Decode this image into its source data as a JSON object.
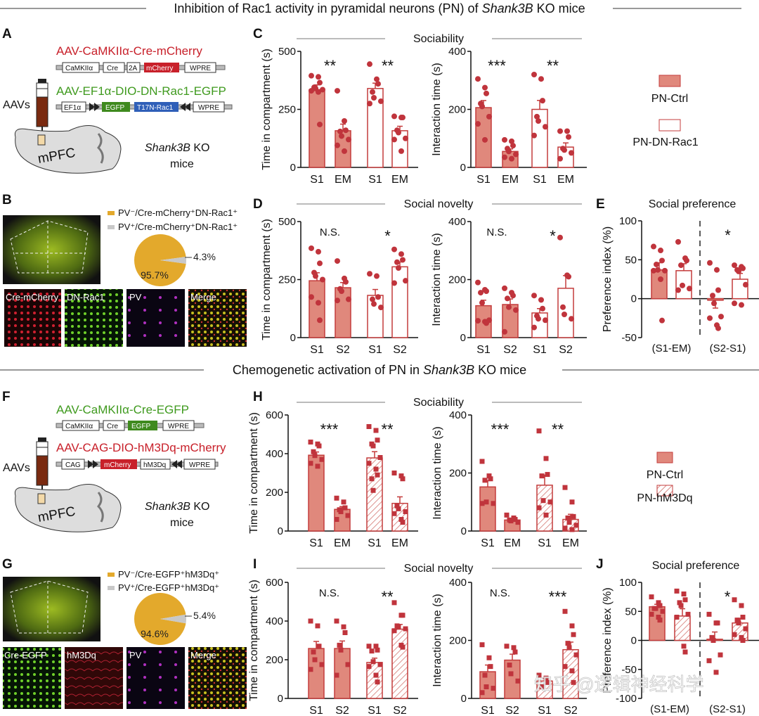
{
  "headers": {
    "top": {
      "pre": "Inhibition of Rac1 activity in pyramidal neurons (PN) of ",
      "italic": "Shank3B",
      "post": " KO mice"
    },
    "middle": {
      "pre": "Chemogenetic activation of PN in ",
      "italic": "Shank3B",
      "post": " KO mice"
    }
  },
  "panels": {
    "A": "A",
    "B": "B",
    "C": "C",
    "D": "D",
    "E": "E",
    "F": "F",
    "G": "G",
    "H": "H",
    "I": "I",
    "J": "J"
  },
  "sections": {
    "C": "Sociability",
    "D": "Social  novelty",
    "E": "Social preference",
    "H": "Sociability",
    "I": "Social  novelty",
    "J": "Social preference"
  },
  "panel_a": {
    "virus1": "AAV-CaMKIIα-Cre-mCherry",
    "virus1_elements": [
      "CaMKIIα",
      "Cre",
      "2A",
      "mCherry",
      "WPRE"
    ],
    "virus2": "AAV-EF1α-DIO-DN-Rac1-EGFP",
    "virus2_elements": [
      "EF1α",
      "EGFP",
      "T17N-Rac1",
      "WPRE"
    ],
    "aavs": "AAVs",
    "region": "mPFC",
    "mouse_italic": "Shank3B",
    "mouse_rest": " KO",
    "mouse_line2": "mice"
  },
  "panel_f": {
    "virus1": "AAV-CaMKIIα-Cre-EGFP",
    "virus1_elements": [
      "CaMKIIα",
      "Cre",
      "EGFP",
      "WPRE"
    ],
    "virus2": "AAV-CAG-DIO-hM3Dq-mCherry",
    "virus2_elements": [
      "CAG",
      "mCherry",
      "hM3Dq",
      "WPRE"
    ],
    "aavs": "AAVs",
    "region": "mPFC",
    "mouse_italic": "Shank3B",
    "mouse_rest": " KO",
    "mouse_line2": "mice"
  },
  "panel_b": {
    "legend": [
      "PV⁻/Cre-mCherry⁺DN-Rac1⁺",
      "PV⁺/Cre-mCherry⁺DN-Rac1⁺"
    ],
    "pie": [
      {
        "label": "95.7%",
        "value": 95.7,
        "color": "#e3a92c"
      },
      {
        "label": "4.3%",
        "value": 4.3,
        "color": "#c8c8c8"
      }
    ],
    "images": [
      "Cre-mCherry",
      "DN-Rac1",
      "PV",
      "Merge"
    ]
  },
  "panel_g": {
    "legend": [
      "PV⁻/Cre-EGFP⁺hM3Dq⁺",
      "PV⁺/Cre-EGFP⁺hM3Dq⁺"
    ],
    "pie": [
      {
        "label": "94.6%",
        "value": 94.6,
        "color": "#e3a92c"
      },
      {
        "label": "5.4%",
        "value": 5.4,
        "color": "#c8c8c8"
      }
    ],
    "images": [
      "Cre-EGFP",
      "hM3Dq",
      "PV",
      "Merge"
    ]
  },
  "legends": {
    "top": [
      "PN-Ctrl",
      "PN-DN-Rac1"
    ],
    "bottom": [
      "PN-Ctrl",
      "PN-hM3Dq"
    ]
  },
  "watermark": "知乎 @逻辑神经科学",
  "colors": {
    "bar_fill": "#e0887c",
    "bar_stroke": "#c43c3c",
    "point": "#c0343c",
    "pie_major": "#e3a92c",
    "pie_minor": "#c8c8c8"
  },
  "chart_data": [
    {
      "panel": "C",
      "type": "bar",
      "ylabel": "Time in compartment (s)",
      "ylim": [
        0,
        500
      ],
      "yticks": [
        "0",
        "250",
        "500"
      ],
      "categories": [
        "S1",
        "EM",
        "S1",
        "EM"
      ],
      "annotations": [
        "**",
        "**"
      ],
      "marker": "circle",
      "groups": [
        {
          "style": "filled",
          "mean": 335,
          "points": [
            395,
            390,
            365,
            345,
            340,
            335,
            330,
            325,
            185
          ]
        },
        {
          "style": "filled",
          "mean": 158,
          "points": [
            330,
            200,
            160,
            155,
            135,
            120,
            95,
            70
          ]
        },
        {
          "style": "open",
          "mean": 340,
          "points": [
            445,
            380,
            360,
            325,
            300,
            285,
            275
          ]
        },
        {
          "style": "open",
          "mean": 158,
          "points": [
            220,
            215,
            215,
            160,
            150,
            125,
            120,
            70
          ]
        }
      ]
    },
    {
      "panel": "C",
      "type": "bar",
      "ylabel": "Interaction time (s)",
      "ylim": [
        0,
        400
      ],
      "yticks": [
        "0",
        "200",
        "400"
      ],
      "categories": [
        "S1",
        "EM",
        "S1",
        "EM"
      ],
      "annotations": [
        "***",
        "**"
      ],
      "marker": "circle",
      "groups": [
        {
          "style": "filled",
          "mean": 206,
          "points": [
            305,
            275,
            255,
            220,
            210,
            175,
            150,
            95
          ]
        },
        {
          "style": "filled",
          "mean": 55,
          "points": [
            95,
            90,
            75,
            65,
            55,
            45,
            35,
            30
          ]
        },
        {
          "style": "open",
          "mean": 200,
          "points": [
            320,
            305,
            230,
            175,
            160,
            140,
            110
          ]
        },
        {
          "style": "open",
          "mean": 70,
          "points": [
            125,
            125,
            105,
            65,
            60,
            50,
            30
          ]
        }
      ]
    },
    {
      "panel": "D",
      "type": "bar",
      "ylabel": "Time in compartment (s)",
      "ylim": [
        0,
        500
      ],
      "yticks": [
        "0",
        "250",
        "500"
      ],
      "categories": [
        "S1",
        "S2",
        "S1",
        "S2"
      ],
      "annotations": [
        "N.S.",
        "*"
      ],
      "marker": "circle",
      "groups": [
        {
          "style": "filled",
          "mean": 245,
          "points": [
            385,
            370,
            320,
            280,
            265,
            250,
            175,
            150,
            75
          ]
        },
        {
          "style": "filled",
          "mean": 215,
          "points": [
            330,
            255,
            240,
            210,
            200,
            165,
            160
          ]
        },
        {
          "style": "open",
          "mean": 182,
          "points": [
            275,
            265,
            175,
            165,
            145,
            130
          ]
        },
        {
          "style": "open",
          "mean": 305,
          "points": [
            380,
            360,
            335,
            325,
            300,
            245,
            235
          ]
        }
      ]
    },
    {
      "panel": "D",
      "type": "bar",
      "ylabel": "Interaction time (s)",
      "ylim": [
        0,
        400
      ],
      "yticks": [
        "0",
        "200",
        "400"
      ],
      "categories": [
        "S1",
        "S2",
        "S1",
        "S2"
      ],
      "annotations": [
        "N.S.",
        "*"
      ],
      "marker": "circle",
      "groups": [
        {
          "style": "filled",
          "mean": 110,
          "points": [
            190,
            165,
            160,
            155,
            120,
            60,
            58,
            55,
            50
          ]
        },
        {
          "style": "filled",
          "mean": 114,
          "points": [
            170,
            155,
            145,
            135,
            105,
            95,
            20
          ]
        },
        {
          "style": "open",
          "mean": 85,
          "points": [
            145,
            130,
            100,
            75,
            65,
            60,
            35
          ]
        },
        {
          "style": "open",
          "mean": 170,
          "points": [
            345,
            215,
            210,
            105,
            80,
            65
          ]
        }
      ]
    },
    {
      "panel": "E",
      "type": "bar",
      "ylabel": "Preference index (%)",
      "ylim": [
        -50,
        100
      ],
      "yticks": [
        "-50",
        "0",
        "50",
        "100"
      ],
      "categories": [
        "(S1-EM)",
        "(S2-S1)"
      ],
      "annotations": [
        "",
        "*"
      ],
      "marker": "circle",
      "groups": [
        {
          "style": "filled",
          "mean": 37,
          "points": [
            67,
            62,
            49,
            44,
            37,
            36,
            36,
            25,
            -28
          ]
        },
        {
          "style": "open",
          "mean": 36,
          "points": [
            73,
            52,
            49,
            43,
            17,
            13,
            11
          ]
        },
        {
          "style": "filled",
          "mean": -2,
          "points": [
            46,
            37,
            11,
            4,
            -6,
            -23,
            -25,
            -34,
            -38
          ]
        },
        {
          "style": "open",
          "mean": 25,
          "points": [
            43,
            41,
            39,
            37,
            35,
            18,
            -6,
            -8
          ]
        }
      ]
    },
    {
      "panel": "H",
      "type": "bar",
      "ylabel": "Time in compartment (s)",
      "ylim": [
        0,
        600
      ],
      "yticks": [
        "0",
        "200",
        "400",
        "600"
      ],
      "categories": [
        "S1",
        "EM",
        "S1",
        "EM"
      ],
      "annotations": [
        "***",
        "**"
      ],
      "marker": "square",
      "groups": [
        {
          "style": "filled",
          "mean": 392,
          "points": [
            460,
            450,
            440,
            410,
            390,
            370,
            350,
            335
          ]
        },
        {
          "style": "filled",
          "mean": 112,
          "points": [
            170,
            150,
            120,
            110,
            100,
            80,
            60
          ]
        },
        {
          "style": "hatched",
          "mean": 378,
          "points": [
            540,
            520,
            470,
            450,
            440,
            380,
            350,
            320,
            290,
            270,
            210
          ]
        },
        {
          "style": "hatched",
          "mean": 143,
          "points": [
            300,
            285,
            270,
            130,
            115,
            100,
            90,
            60,
            45
          ]
        }
      ]
    },
    {
      "panel": "H",
      "type": "bar",
      "ylabel": "Interaction time (s)",
      "ylim": [
        0,
        400
      ],
      "yticks": [
        "0",
        "200",
        "400"
      ],
      "categories": [
        "S1",
        "EM",
        "S1",
        "EM"
      ],
      "annotations": [
        "***",
        "**"
      ],
      "marker": "square",
      "groups": [
        {
          "style": "filled",
          "mean": 152,
          "points": [
            240,
            190,
            180,
            175,
            100,
            95,
            95
          ]
        },
        {
          "style": "filled",
          "mean": 38,
          "points": [
            55,
            45,
            40,
            38,
            35,
            30
          ]
        },
        {
          "style": "hatched",
          "mean": 158,
          "points": [
            345,
            250,
            195,
            190,
            105,
            100,
            80,
            55
          ]
        },
        {
          "style": "hatched",
          "mean": 40,
          "points": [
            150,
            100,
            50,
            45,
            30,
            20,
            10,
            5
          ]
        }
      ]
    },
    {
      "panel": "I",
      "type": "bar",
      "ylabel": "Time in compartment (s)",
      "ylim": [
        0,
        600
      ],
      "yticks": [
        "0",
        "200",
        "400",
        "600"
      ],
      "categories": [
        "S1",
        "S2",
        "S1",
        "S2"
      ],
      "annotations": [
        "N.S.",
        "**"
      ],
      "marker": "square",
      "groups": [
        {
          "style": "filled",
          "mean": 258,
          "points": [
            400,
            375,
            270,
            240,
            200,
            175,
            150
          ]
        },
        {
          "style": "filled",
          "mean": 258,
          "points": [
            400,
            370,
            340,
            275,
            250,
            175,
            120
          ]
        },
        {
          "style": "hatched",
          "mean": 186,
          "points": [
            270,
            270,
            250,
            245,
            190,
            175,
            165,
            120,
            85
          ]
        },
        {
          "style": "hatched",
          "mean": 358,
          "points": [
            495,
            430,
            430,
            375,
            370,
            360,
            350,
            275,
            265
          ]
        }
      ]
    },
    {
      "panel": "I",
      "type": "bar",
      "ylabel": "Interaction time (s)",
      "ylim": [
        0,
        400
      ],
      "yticks": [
        "0",
        "200",
        "400"
      ],
      "categories": [
        "S1",
        "S2",
        "S1",
        "S2"
      ],
      "annotations": [
        "N.S.",
        "***"
      ],
      "marker": "square",
      "groups": [
        {
          "style": "filled",
          "mean": 92,
          "points": [
            185,
            140,
            110,
            80,
            40,
            35,
            20
          ]
        },
        {
          "style": "filled",
          "mean": 132,
          "points": [
            180,
            175,
            160,
            115,
            85,
            60
          ]
        },
        {
          "style": "hatched",
          "mean": 60,
          "points": [
            80,
            70,
            55,
            40
          ]
        },
        {
          "style": "hatched",
          "mean": 168,
          "points": [
            300,
            250,
            220,
            190,
            175,
            150,
            110,
            95,
            55
          ]
        }
      ]
    },
    {
      "panel": "J",
      "type": "bar",
      "ylabel": "Preference index (%)",
      "ylim": [
        -100,
        100
      ],
      "yticks": [
        "-100",
        "-50",
        "0",
        "50",
        "100"
      ],
      "categories": [
        "(S1-EM)",
        "(S2-S1)"
      ],
      "annotations": [
        "",
        "*"
      ],
      "marker": "square",
      "groups": [
        {
          "style": "filled",
          "mean": 58,
          "points": [
            75,
            65,
            60,
            55,
            55,
            50,
            45,
            40,
            35
          ]
        },
        {
          "style": "hatched",
          "mean": 42,
          "points": [
            85,
            80,
            70,
            65,
            60,
            45,
            40,
            -10,
            -20
          ]
        },
        {
          "style": "filled",
          "mean": 2,
          "points": [
            45,
            30,
            30,
            5,
            0,
            -25,
            -35,
            -55
          ]
        },
        {
          "style": "hatched",
          "mean": 30,
          "points": [
            70,
            60,
            40,
            35,
            30,
            20,
            10,
            5,
            0
          ]
        }
      ]
    }
  ]
}
